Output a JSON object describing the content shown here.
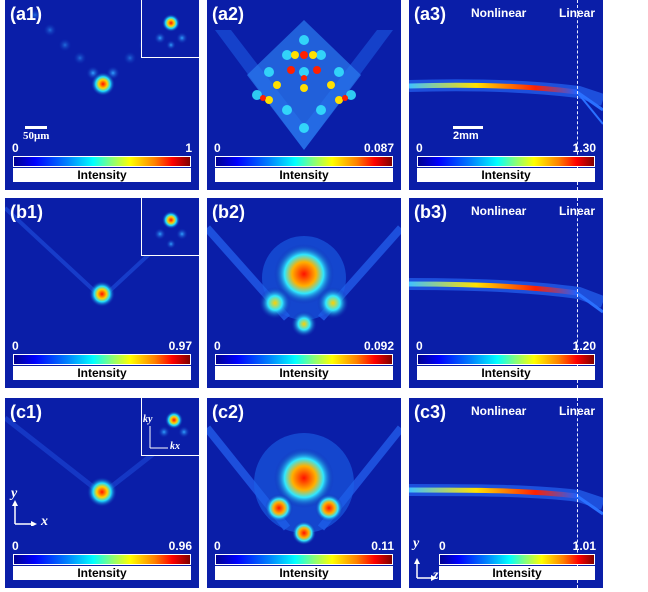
{
  "colorbar_title": "Intensity",
  "panels": {
    "a1": {
      "label": "(a1)",
      "min": "0",
      "max": "1",
      "scale": "50μm"
    },
    "a2": {
      "label": "(a2)",
      "min": "0",
      "max": "0.087"
    },
    "a3": {
      "label": "(a3)",
      "min": "0",
      "max": "1.30",
      "scale": "2mm",
      "left_tag": "Nonlinear",
      "right_tag": "Linear"
    },
    "b1": {
      "label": "(b1)",
      "min": "0",
      "max": "0.97"
    },
    "b2": {
      "label": "(b2)",
      "min": "0",
      "max": "0.092"
    },
    "b3": {
      "label": "(b3)",
      "min": "0",
      "max": "1.20",
      "left_tag": "Nonlinear",
      "right_tag": "Linear"
    },
    "c1": {
      "label": "(c1)",
      "min": "0",
      "max": "0.96",
      "axis_y": "y",
      "axis_x": "x",
      "inset_ky": "ky",
      "inset_kx": "kx"
    },
    "c2": {
      "label": "(c2)",
      "min": "0",
      "max": "0.11"
    },
    "c3": {
      "label": "(c3)",
      "min": "0",
      "max": "1.01",
      "axis_y": "y",
      "axis_z": "z",
      "left_tag": "Nonlinear",
      "right_tag": "Linear"
    }
  },
  "colors": {
    "background": "#0a1ea8",
    "peak": "#ff2000"
  }
}
